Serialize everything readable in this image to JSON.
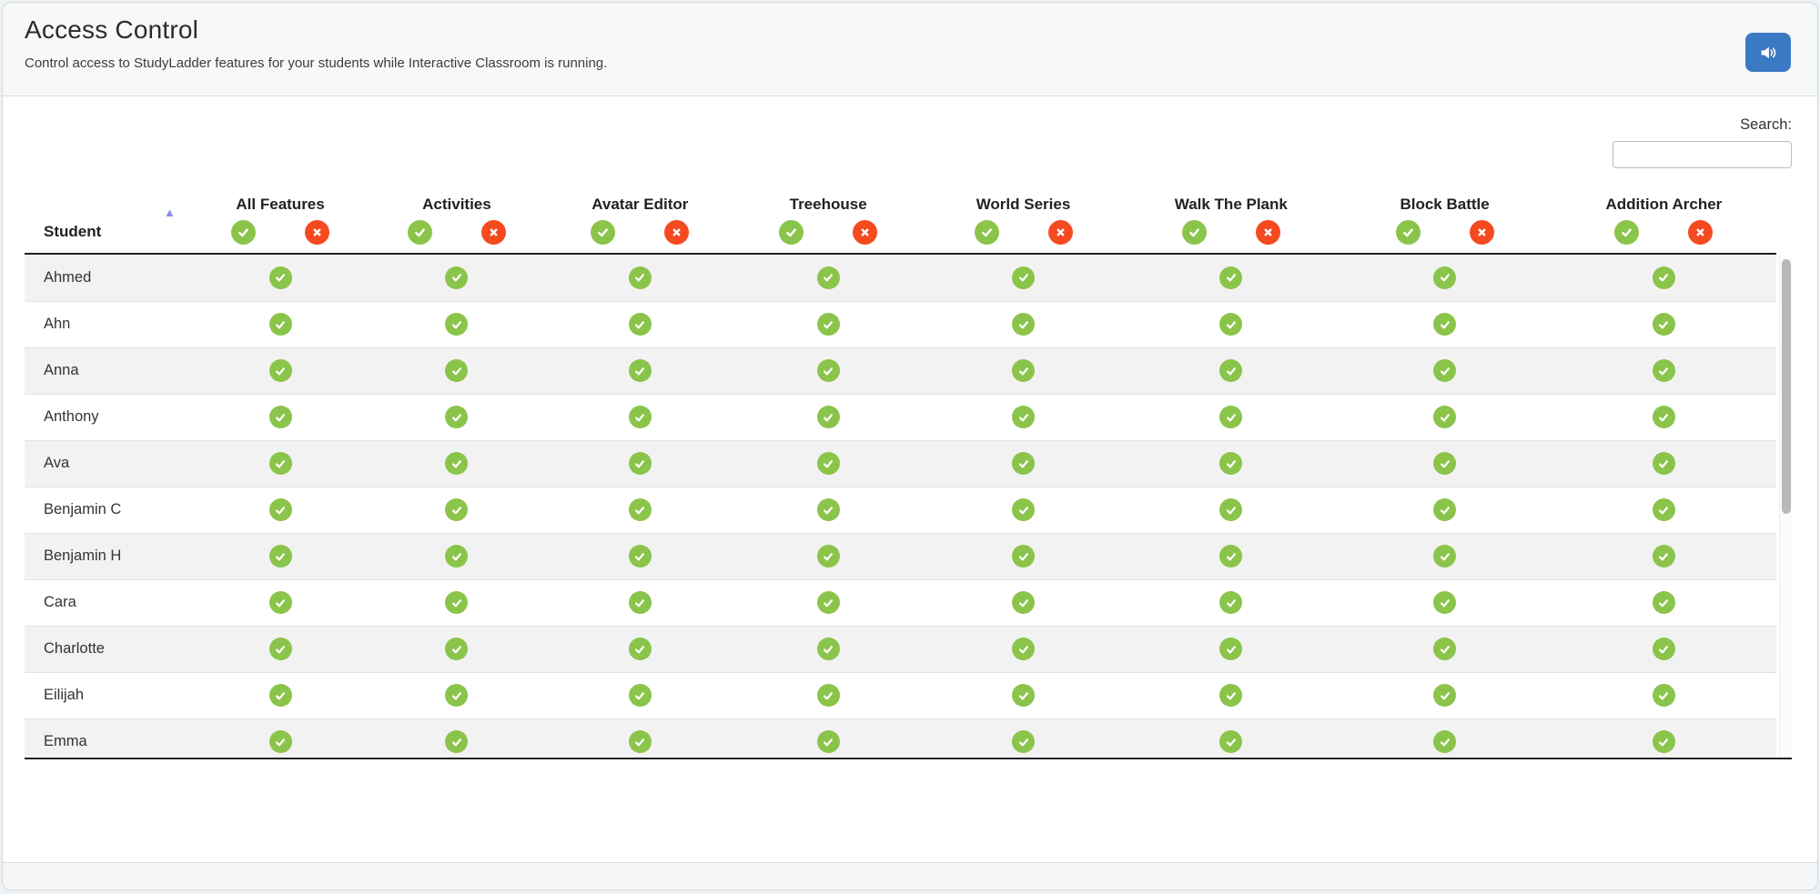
{
  "page": {
    "title": "Access Control",
    "subtitle": "Control access to StudyLadder features for your students while Interactive Classroom is running."
  },
  "header_actions": {
    "sound_button_icon": "volume-icon"
  },
  "search": {
    "label": "Search:",
    "value": ""
  },
  "table": {
    "student_column_header": "Student",
    "sort": {
      "column": "Student",
      "direction": "ascending",
      "icon": "sort-asc-icon"
    },
    "feature_columns": [
      "All Features",
      "Activities",
      "Avatar Editor",
      "Treehouse",
      "World Series",
      "Walk The Plank",
      "Block Battle",
      "Addition Archer"
    ],
    "header_icons": {
      "allow": "check-icon",
      "deny": "x-icon"
    },
    "students": [
      {
        "name": "Ahmed",
        "access": [
          true,
          true,
          true,
          true,
          true,
          true,
          true,
          true
        ]
      },
      {
        "name": "Ahn",
        "access": [
          true,
          true,
          true,
          true,
          true,
          true,
          true,
          true
        ]
      },
      {
        "name": "Anna",
        "access": [
          true,
          true,
          true,
          true,
          true,
          true,
          true,
          true
        ]
      },
      {
        "name": "Anthony",
        "access": [
          true,
          true,
          true,
          true,
          true,
          true,
          true,
          true
        ]
      },
      {
        "name": "Ava",
        "access": [
          true,
          true,
          true,
          true,
          true,
          true,
          true,
          true
        ]
      },
      {
        "name": "Benjamin C",
        "access": [
          true,
          true,
          true,
          true,
          true,
          true,
          true,
          true
        ]
      },
      {
        "name": "Benjamin H",
        "access": [
          true,
          true,
          true,
          true,
          true,
          true,
          true,
          true
        ]
      },
      {
        "name": "Cara",
        "access": [
          true,
          true,
          true,
          true,
          true,
          true,
          true,
          true
        ]
      },
      {
        "name": "Charlotte",
        "access": [
          true,
          true,
          true,
          true,
          true,
          true,
          true,
          true
        ]
      },
      {
        "name": "Eilijah",
        "access": [
          true,
          true,
          true,
          true,
          true,
          true,
          true,
          true
        ]
      },
      {
        "name": "Emma",
        "access": [
          true,
          true,
          true,
          true,
          true,
          true,
          true,
          true
        ]
      }
    ]
  },
  "colors": {
    "accent_green": "#8bc44a",
    "accent_red": "#f54a1f",
    "button_blue": "#3a79c4",
    "sort_arrow_purple": "#8a8cf0"
  }
}
